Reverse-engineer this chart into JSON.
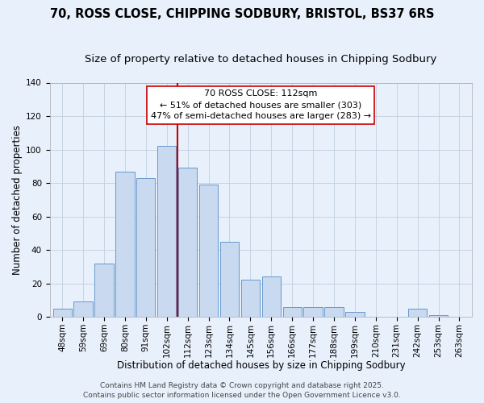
{
  "title_line1": "70, ROSS CLOSE, CHIPPING SODBURY, BRISTOL, BS37 6RS",
  "title_line2": "Size of property relative to detached houses in Chipping Sodbury",
  "xlabel": "Distribution of detached houses by size in Chipping Sodbury",
  "ylabel": "Number of detached properties",
  "bar_labels": [
    "48sqm",
    "59sqm",
    "69sqm",
    "80sqm",
    "91sqm",
    "102sqm",
    "112sqm",
    "123sqm",
    "134sqm",
    "145sqm",
    "156sqm",
    "166sqm",
    "177sqm",
    "188sqm",
    "199sqm",
    "210sqm",
    "231sqm",
    "242sqm",
    "253sqm",
    "263sqm"
  ],
  "bar_values": [
    5,
    9,
    32,
    87,
    83,
    102,
    89,
    79,
    45,
    22,
    24,
    6,
    6,
    6,
    3,
    0,
    0,
    5,
    1,
    0
  ],
  "bar_color": "#c9d9f0",
  "bar_edge_color": "#6699cc",
  "background_color": "#e8f0fb",
  "vline_color": "#cc0000",
  "annotation_title": "70 ROSS CLOSE: 112sqm",
  "annotation_line2": "← 51% of detached houses are smaller (303)",
  "annotation_line3": "47% of semi-detached houses are larger (283) →",
  "annotation_box_color": "#ffffff",
  "annotation_box_edge": "#cc0000",
  "ylim": [
    0,
    140
  ],
  "yticks": [
    0,
    20,
    40,
    60,
    80,
    100,
    120,
    140
  ],
  "footer_line1": "Contains HM Land Registry data © Crown copyright and database right 2025.",
  "footer_line2": "Contains public sector information licensed under the Open Government Licence v3.0.",
  "title_fontsize": 10.5,
  "subtitle_fontsize": 9.5,
  "axis_label_fontsize": 8.5,
  "tick_fontsize": 7.5,
  "annotation_fontsize": 8,
  "footer_fontsize": 6.5
}
